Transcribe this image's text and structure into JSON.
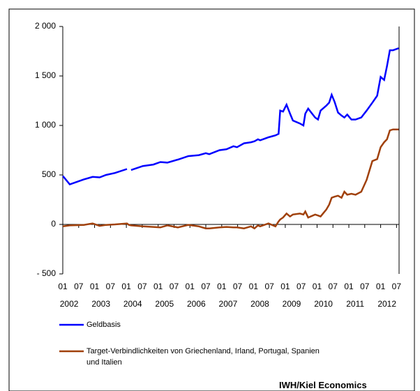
{
  "chart_data": {
    "type": "line",
    "source": "IWH/Kiel Economics",
    "x": [
      2002.0,
      2002.22,
      2002.66,
      2002.94,
      2003.16,
      2003.36,
      2003.64,
      2004.02,
      2004.08,
      2004.15,
      2004.52,
      2004.85,
      2005.07,
      2005.29,
      2005.62,
      2005.95,
      2006.28,
      2006.5,
      2006.61,
      2006.93,
      2007.15,
      2007.37,
      2007.48,
      2007.7,
      2007.92,
      2008.03,
      2008.14,
      2008.21,
      2008.47,
      2008.69,
      2008.79,
      2008.84,
      2008.93,
      2009.04,
      2009.15,
      2009.24,
      2009.46,
      2009.57,
      2009.63,
      2009.72,
      2009.94,
      2010.03,
      2010.11,
      2010.29,
      2010.38,
      2010.46,
      2010.55,
      2010.66,
      2010.77,
      2010.86,
      2010.95,
      2011.08,
      2011.21,
      2011.39,
      2011.56,
      2011.74,
      2011.89,
      2012.0,
      2012.11,
      2012.2,
      2012.29,
      2012.39,
      2012.57
    ],
    "series": [
      {
        "name": "Geldbasis",
        "color": "#0000ff",
        "values": [
          490,
          405,
          455,
          480,
          475,
          500,
          520,
          560,
          null,
          550,
          590,
          605,
          630,
          625,
          655,
          690,
          700,
          720,
          710,
          750,
          760,
          790,
          780,
          820,
          830,
          840,
          860,
          850,
          880,
          900,
          915,
          1150,
          1140,
          1210,
          1120,
          1050,
          1020,
          1000,
          1120,
          1170,
          1080,
          1060,
          1150,
          1200,
          1230,
          1310,
          1240,
          1130,
          1100,
          1080,
          1110,
          1060,
          1060,
          1080,
          1150,
          1230,
          1300,
          1490,
          1460,
          1600,
          1760,
          1760,
          1780
        ]
      },
      {
        "name": "Target-Verbindlichkeiten von Griechenland, Irland, Portugal, Spanien und Italien",
        "color": "#a0400a",
        "values": [
          -20,
          -10,
          -5,
          10,
          -15,
          -5,
          0,
          10,
          -5,
          -10,
          -20,
          -25,
          -30,
          -10,
          -30,
          -5,
          -20,
          -40,
          -40,
          -30,
          -25,
          -30,
          -30,
          -40,
          -20,
          -40,
          -10,
          -20,
          10,
          -20,
          30,
          50,
          70,
          110,
          80,
          100,
          110,
          100,
          130,
          70,
          100,
          90,
          80,
          150,
          200,
          270,
          280,
          290,
          270,
          330,
          300,
          310,
          300,
          330,
          450,
          640,
          660,
          780,
          830,
          860,
          950,
          960,
          960
        ]
      }
    ],
    "xlim": [
      2002,
      2012.58
    ],
    "xticks": [
      {
        "value": 2002,
        "label": "01"
      },
      {
        "value": 2002.5,
        "label": "07"
      },
      {
        "value": 2003,
        "label": "01"
      },
      {
        "value": 2003.5,
        "label": "07"
      },
      {
        "value": 2004,
        "label": "01"
      },
      {
        "value": 2004.5,
        "label": "07"
      },
      {
        "value": 2005,
        "label": "01"
      },
      {
        "value": 2005.5,
        "label": "07"
      },
      {
        "value": 2006,
        "label": "01"
      },
      {
        "value": 2006.5,
        "label": "07"
      },
      {
        "value": 2007,
        "label": "01"
      },
      {
        "value": 2007.5,
        "label": "07"
      },
      {
        "value": 2008,
        "label": "01"
      },
      {
        "value": 2008.5,
        "label": "07"
      },
      {
        "value": 2009,
        "label": "01"
      },
      {
        "value": 2009.5,
        "label": "07"
      },
      {
        "value": 2010,
        "label": "01"
      },
      {
        "value": 2010.5,
        "label": "07"
      },
      {
        "value": 2011,
        "label": "01"
      },
      {
        "value": 2011.5,
        "label": "07"
      },
      {
        "value": 2012,
        "label": "01"
      },
      {
        "value": 2012.5,
        "label": "07"
      }
    ],
    "x_year_labels": [
      {
        "value": 2002,
        "label": "2002"
      },
      {
        "value": 2003,
        "label": "2003"
      },
      {
        "value": 2004,
        "label": "2004"
      },
      {
        "value": 2005,
        "label": "2005"
      },
      {
        "value": 2006,
        "label": "2006"
      },
      {
        "value": 2007,
        "label": "2007"
      },
      {
        "value": 2008,
        "label": "2008"
      },
      {
        "value": 2009,
        "label": "2009"
      },
      {
        "value": 2010,
        "label": "2010"
      },
      {
        "value": 2011,
        "label": "2011"
      },
      {
        "value": 2012,
        "label": "2012"
      }
    ],
    "ylim": [
      -500,
      2000
    ],
    "yticks": [
      {
        "value": -500,
        "label": "- 500"
      },
      0,
      500,
      {
        "value": 1000,
        "label": "1 000"
      },
      {
        "value": 1500,
        "label": "1 500"
      },
      {
        "value": 2000,
        "label": "2 000"
      }
    ]
  }
}
